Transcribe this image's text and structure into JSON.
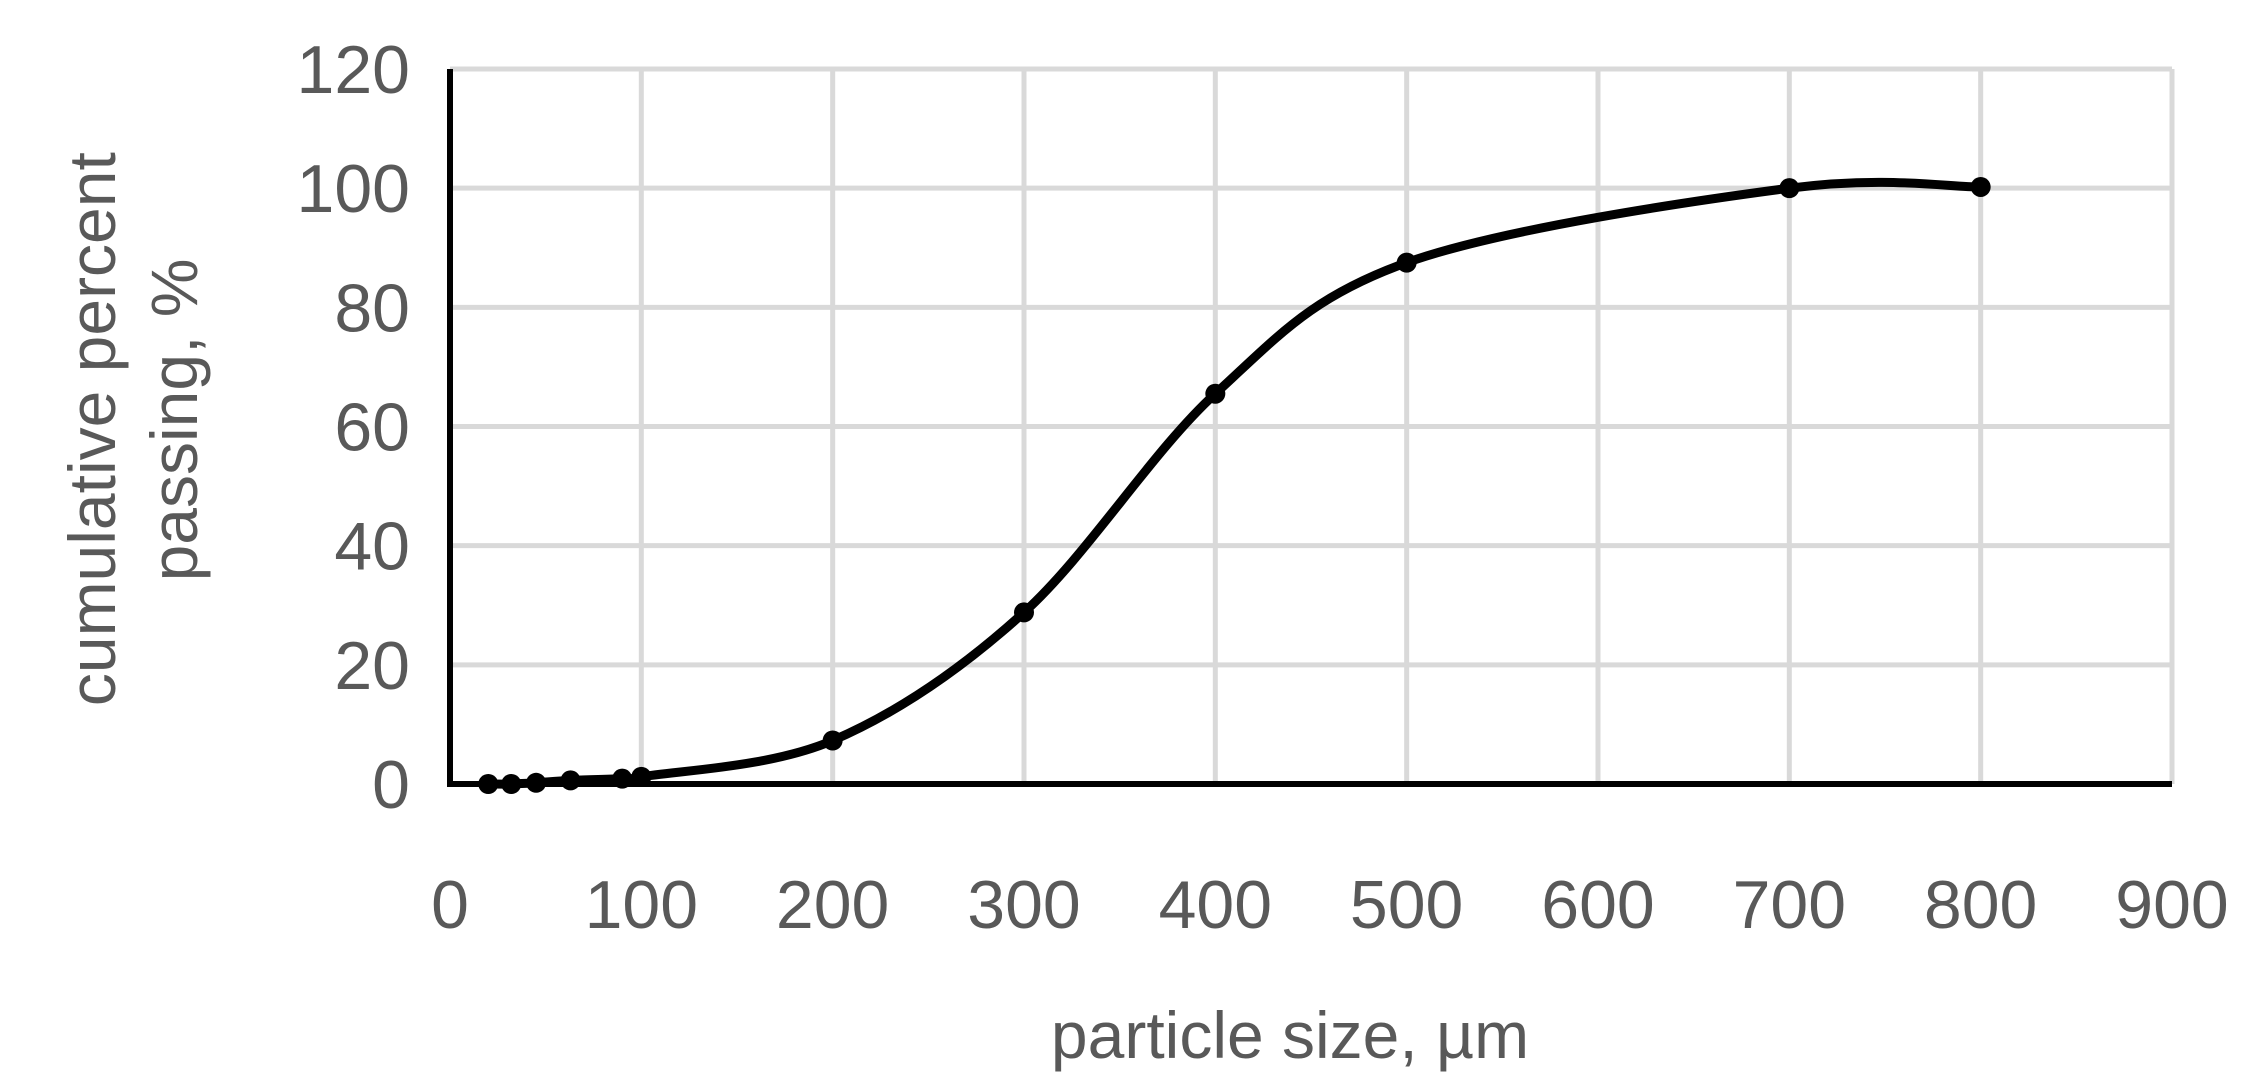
{
  "chart_data": {
    "type": "scatter",
    "smooth": true,
    "markers": true,
    "xlabel": "particle size, µm",
    "ylabel_lines": [
      "cumulative percent",
      "passing, %"
    ],
    "xlim": [
      0,
      900
    ],
    "ylim": [
      0,
      120
    ],
    "x_ticks": [
      0,
      100,
      200,
      300,
      400,
      500,
      600,
      700,
      800,
      900
    ],
    "y_ticks": [
      0,
      20,
      40,
      60,
      80,
      100,
      120
    ],
    "grid": true,
    "series_color": "#000000",
    "grid_color": "#d9d9d9",
    "text_color": "#595959",
    "series": [
      {
        "x": [
          20,
          32,
          45,
          63,
          90,
          100,
          200,
          300,
          400,
          500,
          700,
          800
        ],
        "y": [
          0,
          0,
          0.2,
          0.6,
          0.9,
          1.2,
          7.3,
          28.8,
          65.5,
          87.5,
          100,
          100.2
        ]
      }
    ]
  }
}
